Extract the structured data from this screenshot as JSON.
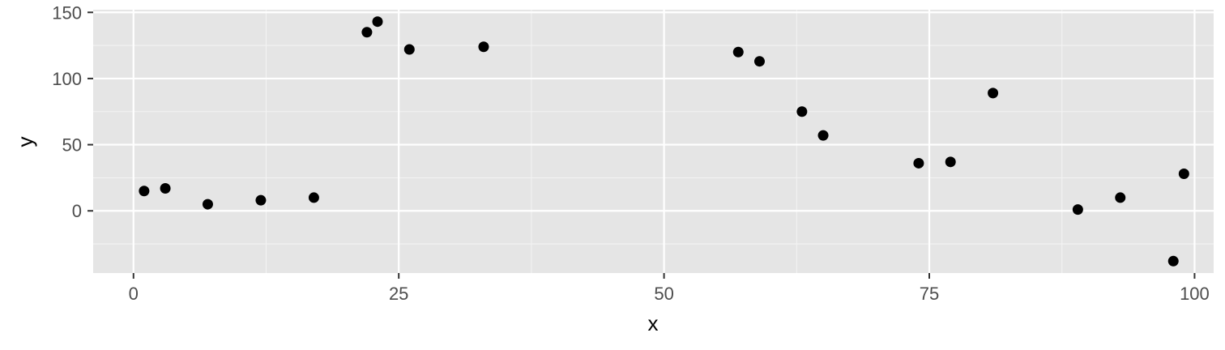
{
  "chart_data": {
    "type": "scatter",
    "title": "",
    "xlabel": "x",
    "ylabel": "y",
    "xlim": [
      -3.8,
      101.8
    ],
    "ylim": [
      -47,
      152
    ],
    "x_ticks": [
      0,
      25,
      50,
      75,
      100
    ],
    "x_tick_labels": [
      "0",
      "25",
      "50",
      "75",
      "100"
    ],
    "y_ticks": [
      0,
      50,
      100,
      150
    ],
    "y_tick_labels": [
      "0",
      "50",
      "100",
      "150"
    ],
    "x_minor_ticks": [
      12.5,
      37.5,
      62.5,
      87.5
    ],
    "y_minor_ticks": [
      -25,
      25,
      75,
      125
    ],
    "grid": true,
    "legend": "none",
    "point_color": "#000000",
    "panel_color": "#e5e5e5",
    "grid_color": "#ffffff",
    "x": [
      1,
      3,
      7,
      12,
      17,
      22,
      23,
      26,
      33,
      57,
      59,
      63,
      65,
      74,
      77,
      81,
      89,
      93,
      98,
      99
    ],
    "y": [
      15,
      17,
      5,
      8,
      10,
      135,
      143,
      122,
      124,
      120,
      113,
      75,
      57,
      36,
      37,
      89,
      1,
      10,
      -38,
      28
    ]
  }
}
